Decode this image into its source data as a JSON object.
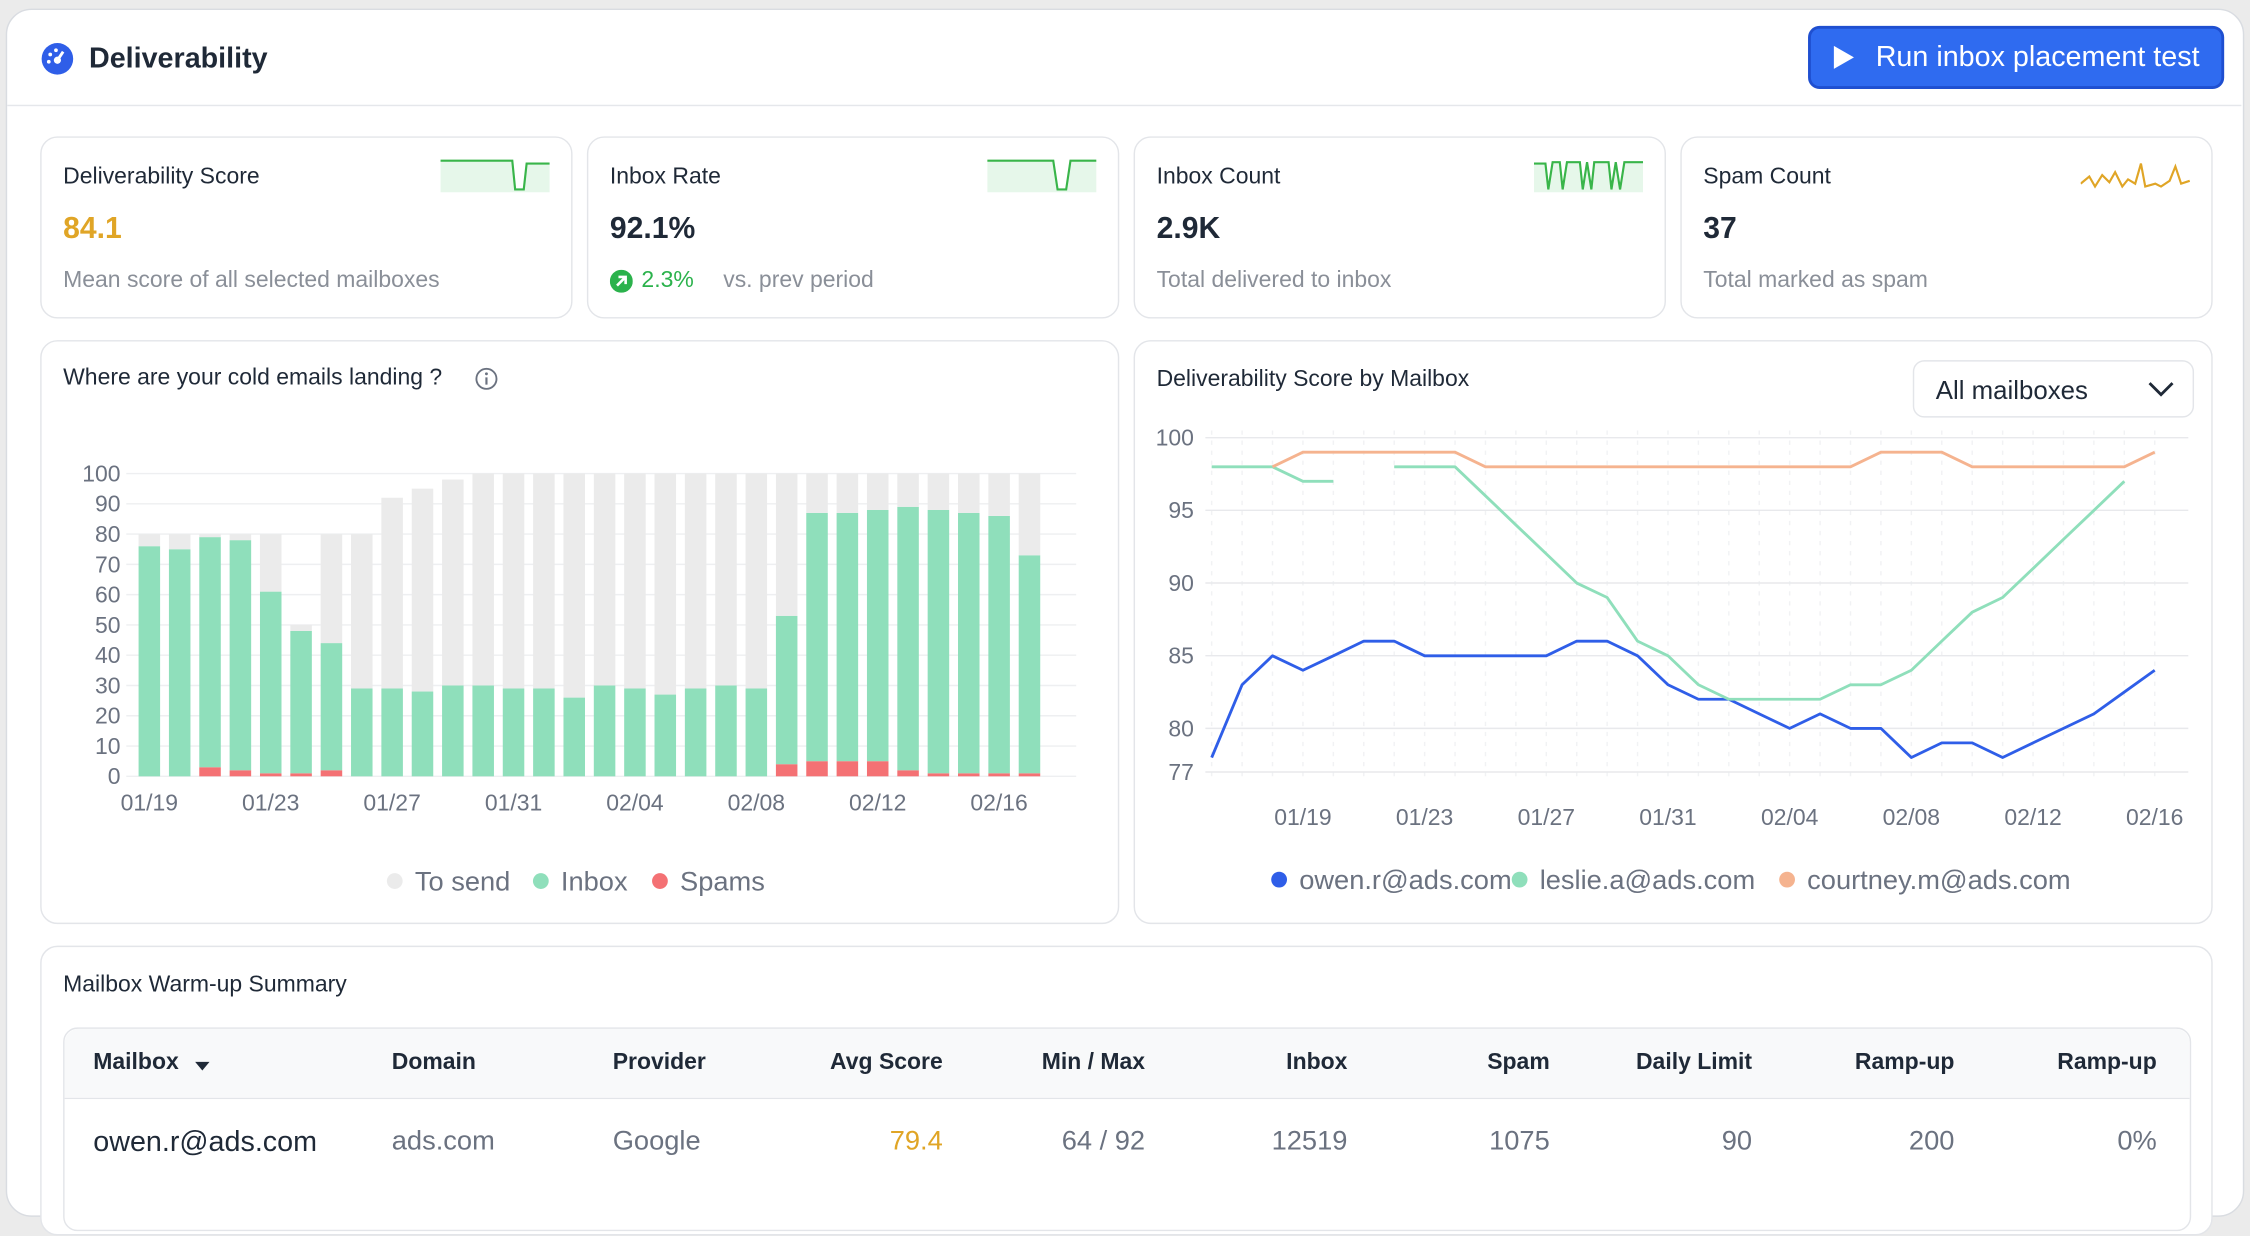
{
  "header": {
    "title": "Deliverability",
    "button": "Run inbox placement test"
  },
  "kpis": [
    {
      "label": "Deliverability Score",
      "value": "84.1",
      "note": "Mean score of all selected mailboxes"
    },
    {
      "label": "Inbox Rate",
      "value": "92.1%",
      "change": "2.3%",
      "note": "vs. prev period"
    },
    {
      "label": "Inbox Count",
      "value": "2.9K",
      "note": "Total delivered to inbox"
    },
    {
      "label": "Spam Count",
      "value": "37",
      "note": "Total marked as spam"
    }
  ],
  "chart_data": [
    {
      "type": "bar",
      "stacked": true,
      "title": "Where are your cold emails landing ?",
      "categories": [
        "01/19",
        null,
        null,
        null,
        "01/23",
        null,
        null,
        null,
        "01/27",
        null,
        null,
        null,
        "01/31",
        null,
        null,
        null,
        "02/04",
        null,
        null,
        null,
        "02/08",
        null,
        null,
        null,
        "02/12",
        null,
        null,
        null,
        "02/16",
        null
      ],
      "series": [
        {
          "name": "To send",
          "color": "#ebebeb",
          "values": [
            4,
            5,
            1,
            2,
            19,
            2,
            36,
            51,
            63,
            67,
            68,
            70,
            71,
            71,
            74,
            70,
            71,
            73,
            71,
            70,
            71,
            47,
            13,
            13,
            12,
            11,
            12,
            13,
            14,
            27
          ]
        },
        {
          "name": "Inbox",
          "color": "#8fdfbb",
          "values": [
            76,
            75,
            76,
            76,
            60,
            47,
            42,
            29,
            29,
            28,
            30,
            30,
            29,
            29,
            26,
            30,
            29,
            27,
            29,
            30,
            29,
            49,
            82,
            82,
            83,
            87,
            87,
            86,
            85,
            72
          ]
        },
        {
          "name": "Spams",
          "color": "#f47174",
          "values": [
            0,
            0,
            3,
            2,
            1,
            1,
            2,
            0,
            0,
            0,
            0,
            0,
            0,
            0,
            0,
            0,
            0,
            0,
            0,
            0,
            0,
            4,
            5,
            5,
            5,
            2,
            1,
            1,
            1,
            1
          ]
        }
      ],
      "ylim": [
        0,
        100
      ],
      "yticks": [
        0,
        10,
        20,
        30,
        40,
        50,
        60,
        70,
        80,
        90,
        100
      ],
      "grid": true
    },
    {
      "type": "line",
      "title": "Deliverability Score by Mailbox",
      "categories": [
        null,
        null,
        null,
        "01/19",
        null,
        null,
        null,
        "01/23",
        null,
        null,
        null,
        "01/27",
        null,
        null,
        null,
        "01/31",
        null,
        null,
        null,
        "02/04",
        null,
        null,
        null,
        "02/08",
        null,
        null,
        null,
        "02/12",
        null,
        null,
        null,
        "02/16"
      ],
      "series": [
        {
          "name": "owen.r@ads.com",
          "color": "#2f5ee8",
          "values": [
            78,
            83,
            85,
            84,
            85,
            86,
            86,
            85,
            85,
            85,
            85,
            85,
            86,
            86,
            85,
            83,
            82,
            82,
            81,
            80,
            81,
            80,
            80,
            78,
            79,
            79,
            78,
            79,
            80,
            81,
            82.5,
            84
          ]
        },
        {
          "name": "leslie.a@ads.com",
          "color": "#8fdfbb",
          "values": [
            98,
            98,
            98,
            97,
            97,
            null,
            98,
            98,
            98,
            96,
            94,
            92,
            90,
            89,
            86,
            85,
            83,
            82,
            82,
            82,
            82,
            83,
            83,
            84,
            86,
            88,
            89,
            91,
            93,
            95,
            97,
            null
          ]
        },
        {
          "name": "courtney.m@ads.com",
          "color": "#f5b38f",
          "values": [
            null,
            null,
            98,
            99,
            99,
            99,
            99,
            99,
            99,
            98,
            98,
            98,
            98,
            98,
            98,
            98,
            98,
            98,
            98,
            98,
            98,
            98,
            99,
            99,
            99,
            98,
            98,
            98,
            98,
            98,
            98,
            99
          ]
        }
      ],
      "ylim": [
        77,
        100
      ],
      "yticks": [
        77,
        80,
        85,
        90,
        95,
        100
      ],
      "grid": true
    }
  ],
  "dropdown": "All mailboxes",
  "table": {
    "title": "Mailbox Warm-up Summary",
    "columns": [
      "Mailbox",
      "Domain",
      "Provider",
      "Avg  Score",
      "Min / Max",
      "Inbox",
      "Spam",
      "Daily Limit",
      "Ramp-up",
      "Ramp-up"
    ],
    "rows": [
      [
        "owen.r@ads.com",
        "ads.com",
        "Google",
        "79.4",
        "64 / 92",
        "12519",
        "1075",
        "90",
        "200",
        "0%"
      ]
    ]
  }
}
